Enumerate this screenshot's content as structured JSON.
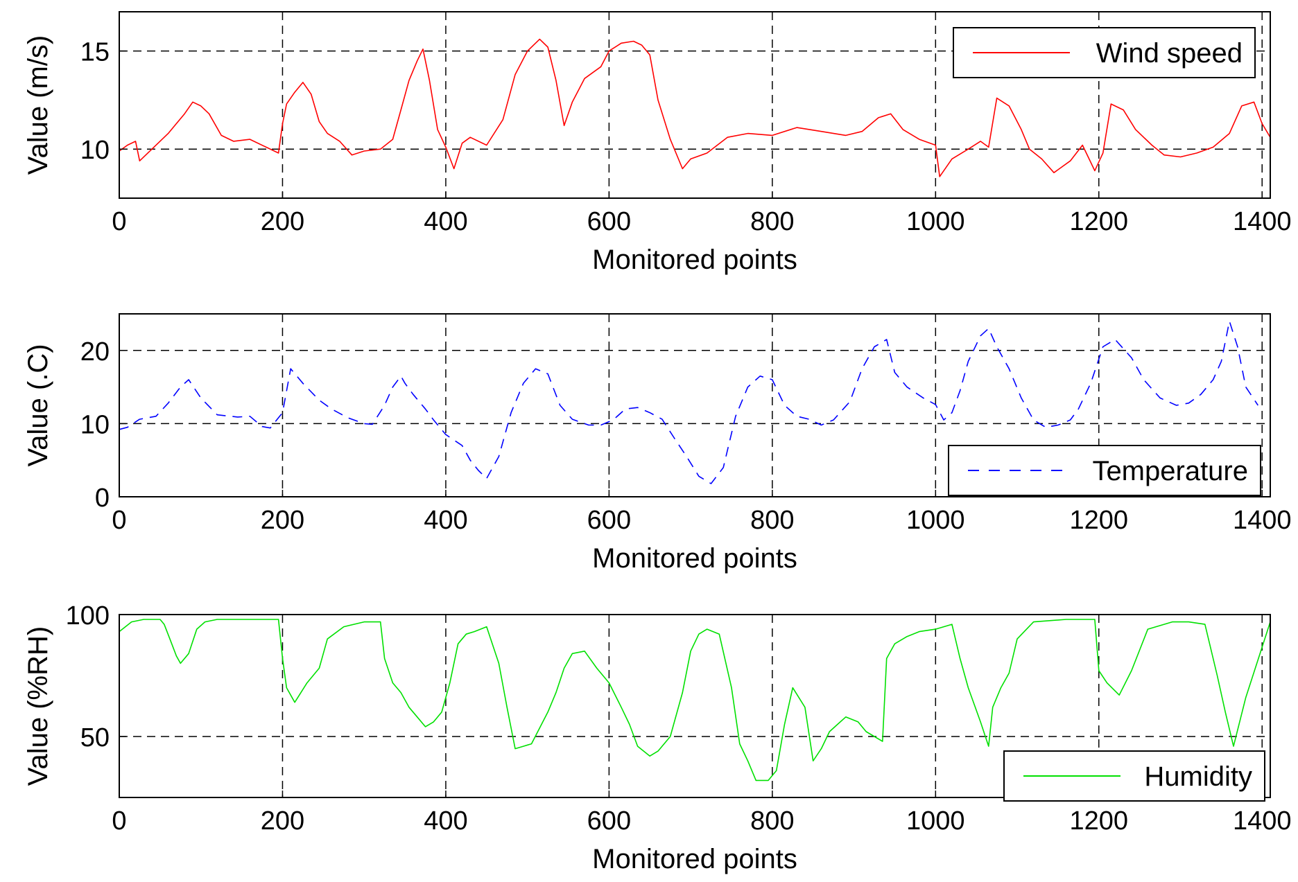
{
  "chart_data": [
    {
      "type": "line",
      "xlabel": "Monitored points",
      "ylabel": "Value (m/s)",
      "xlim": [
        0,
        1410
      ],
      "ylim": [
        7.5,
        17
      ],
      "xticks": [
        "0",
        "200",
        "400",
        "600",
        "800",
        "1000",
        "1200",
        "1400"
      ],
      "yticks": [
        "10",
        "15"
      ],
      "grid": "dashed, on ticks",
      "legend": "top-right",
      "series": [
        {
          "name": "Wind speed",
          "color": "#ff0000",
          "style": "solid",
          "x": [
            0,
            10,
            20,
            25,
            40,
            60,
            80,
            90,
            100,
            110,
            125,
            140,
            160,
            180,
            195,
            200,
            205,
            215,
            225,
            235,
            245,
            255,
            270,
            285,
            300,
            320,
            335,
            345,
            355,
            365,
            372,
            380,
            390,
            400,
            410,
            420,
            430,
            450,
            470,
            485,
            500,
            515,
            525,
            535,
            545,
            555,
            570,
            580,
            590,
            600,
            615,
            630,
            640,
            650,
            660,
            675,
            690,
            700,
            720,
            745,
            770,
            800,
            830,
            860,
            890,
            910,
            930,
            945,
            960,
            980,
            1000,
            1005,
            1020,
            1040,
            1055,
            1065,
            1075,
            1090,
            1105,
            1115,
            1130,
            1145,
            1165,
            1180,
            1195,
            1205,
            1215,
            1230,
            1245,
            1265,
            1280,
            1300,
            1320,
            1340,
            1360,
            1375,
            1390,
            1400,
            1410
          ],
          "y": [
            9.9,
            10.2,
            10.4,
            9.4,
            10.0,
            10.8,
            11.8,
            12.4,
            12.2,
            11.8,
            10.7,
            10.4,
            10.5,
            10.1,
            9.8,
            11.3,
            12.3,
            12.9,
            13.4,
            12.8,
            11.4,
            10.8,
            10.4,
            9.7,
            9.9,
            10.0,
            10.5,
            12.0,
            13.5,
            14.5,
            15.1,
            13.5,
            11.0,
            10.1,
            9.0,
            10.3,
            10.6,
            10.2,
            11.5,
            13.8,
            15.0,
            15.6,
            15.2,
            13.5,
            11.2,
            12.4,
            13.6,
            13.9,
            14.2,
            15.0,
            15.4,
            15.5,
            15.3,
            14.8,
            12.5,
            10.5,
            9.0,
            9.5,
            9.8,
            10.6,
            10.8,
            10.7,
            11.1,
            10.9,
            10.7,
            10.9,
            11.6,
            11.8,
            11.0,
            10.5,
            10.2,
            8.6,
            9.5,
            10.0,
            10.4,
            10.1,
            12.6,
            12.2,
            11.0,
            10.0,
            9.5,
            8.8,
            9.4,
            10.2,
            8.9,
            9.8,
            12.3,
            12.0,
            11.0,
            10.2,
            9.7,
            9.6,
            9.8,
            10.1,
            10.8,
            12.2,
            12.4,
            11.3,
            10.6
          ]
        }
      ]
    },
    {
      "type": "line",
      "xlabel": "Monitored points",
      "ylabel": "Value (.C)",
      "xlim": [
        0,
        1410
      ],
      "ylim": [
        0,
        25
      ],
      "xticks": [
        "0",
        "200",
        "400",
        "600",
        "800",
        "1000",
        "1200",
        "1400"
      ],
      "yticks": [
        "0",
        "10",
        "20"
      ],
      "grid": "dashed, on ticks",
      "legend": "bottom-right",
      "series": [
        {
          "name": "Temperature",
          "color": "#0000ff",
          "style": "dashed",
          "x": [
            0,
            10,
            25,
            45,
            60,
            75,
            85,
            100,
            120,
            145,
            160,
            175,
            185,
            200,
            210,
            225,
            245,
            260,
            280,
            300,
            310,
            325,
            335,
            345,
            350,
            360,
            375,
            385,
            400,
            420,
            430,
            440,
            450,
            465,
            480,
            495,
            510,
            525,
            540,
            555,
            575,
            590,
            605,
            620,
            635,
            650,
            665,
            680,
            695,
            710,
            725,
            740,
            755,
            770,
            785,
            800,
            815,
            830,
            845,
            860,
            875,
            895,
            910,
            925,
            940,
            950,
            965,
            985,
            1000,
            1010,
            1020,
            1030,
            1040,
            1055,
            1065,
            1075,
            1090,
            1105,
            1120,
            1135,
            1150,
            1165,
            1175,
            1190,
            1205,
            1220,
            1240,
            1255,
            1275,
            1295,
            1310,
            1325,
            1340,
            1350,
            1360,
            1370,
            1380,
            1395
          ],
          "y": [
            9.2,
            9.5,
            10.6,
            11.0,
            12.8,
            15.0,
            16.0,
            13.5,
            11.2,
            10.9,
            11.0,
            9.6,
            9.4,
            11.5,
            17.5,
            15.5,
            13.2,
            12.0,
            10.8,
            10.0,
            9.9,
            12.5,
            15.0,
            16.5,
            15.5,
            14.0,
            12.0,
            10.5,
            8.5,
            7.0,
            5.0,
            3.6,
            2.5,
            5.5,
            11.5,
            15.5,
            17.5,
            16.8,
            12.5,
            10.6,
            9.8,
            9.8,
            10.5,
            12.0,
            12.2,
            11.5,
            10.6,
            8.0,
            5.5,
            2.8,
            1.8,
            4.0,
            11.0,
            15.0,
            16.5,
            16.0,
            12.5,
            11.0,
            10.6,
            9.8,
            10.5,
            13.0,
            17.5,
            20.5,
            21.5,
            17.0,
            15.0,
            13.5,
            12.6,
            10.5,
            11.5,
            14.5,
            18.5,
            22.0,
            23.0,
            20.5,
            17.5,
            13.5,
            10.5,
            9.5,
            9.8,
            10.5,
            12.0,
            15.5,
            20.5,
            21.5,
            19.0,
            16.0,
            13.5,
            12.5,
            12.8,
            14.0,
            16.0,
            18.5,
            24.0,
            20.5,
            15.0,
            12.5
          ]
        }
      ]
    },
    {
      "type": "line",
      "xlabel": "Monitored points",
      "ylabel": "Value (%RH)",
      "xlim": [
        0,
        1410
      ],
      "ylim": [
        25,
        100
      ],
      "xticks": [
        "0",
        "200",
        "400",
        "600",
        "800",
        "1000",
        "1200",
        "1400"
      ],
      "yticks": [
        "50",
        "100"
      ],
      "grid": "dashed, on ticks",
      "legend": "bottom-right",
      "series": [
        {
          "name": "Humidity",
          "color": "#00e000",
          "style": "solid",
          "x": [
            0,
            15,
            30,
            50,
            55,
            62,
            70,
            75,
            85,
            95,
            105,
            120,
            160,
            195,
            200,
            205,
            215,
            230,
            245,
            255,
            275,
            300,
            320,
            325,
            335,
            345,
            355,
            365,
            375,
            385,
            395,
            405,
            415,
            425,
            435,
            450,
            465,
            475,
            485,
            495,
            505,
            525,
            535,
            545,
            555,
            570,
            585,
            600,
            615,
            625,
            635,
            650,
            660,
            675,
            690,
            700,
            710,
            720,
            735,
            750,
            760,
            770,
            780,
            795,
            805,
            815,
            825,
            840,
            850,
            860,
            870,
            880,
            890,
            905,
            915,
            925,
            935,
            940,
            950,
            965,
            980,
            1000,
            1020,
            1030,
            1040,
            1055,
            1065,
            1070,
            1080,
            1090,
            1100,
            1120,
            1160,
            1195,
            1200,
            1210,
            1225,
            1240,
            1260,
            1290,
            1310,
            1330,
            1345,
            1355,
            1365,
            1380,
            1410
          ],
          "y": [
            93,
            97,
            98,
            98,
            96,
            90,
            83,
            80,
            84,
            94,
            97,
            98,
            98,
            98,
            82,
            70,
            64,
            72,
            78,
            90,
            95,
            97,
            97,
            82,
            72,
            68,
            62,
            58,
            54,
            56,
            60,
            72,
            88,
            92,
            93,
            95,
            80,
            62,
            45,
            46,
            47,
            60,
            68,
            78,
            84,
            85,
            78,
            72,
            62,
            55,
            46,
            42,
            44,
            50,
            68,
            85,
            92,
            94,
            92,
            70,
            47,
            40,
            32,
            32,
            36,
            55,
            70,
            62,
            40,
            45,
            52,
            55,
            58,
            56,
            52,
            50,
            48,
            82,
            88,
            91,
            93,
            94,
            96,
            82,
            70,
            56,
            46,
            62,
            70,
            76,
            90,
            97,
            98,
            98,
            77,
            72,
            67,
            77,
            94,
            97,
            97,
            96,
            75,
            60,
            46,
            66,
            97
          ]
        }
      ]
    }
  ]
}
